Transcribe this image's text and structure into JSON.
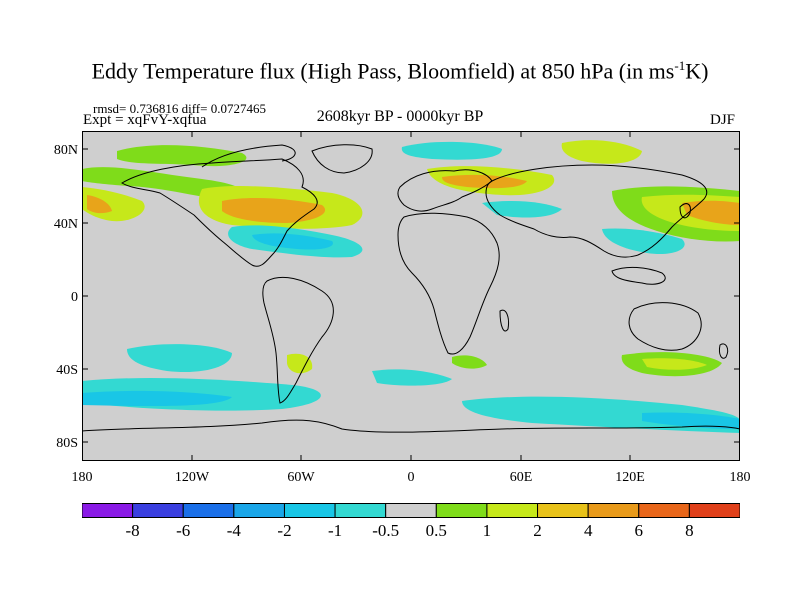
{
  "title": "Eddy Temperature flux (High Pass, Bloomfield) at 850 hPa (in ms",
  "title_sup": "-1",
  "title_end": "K)",
  "stats": "rmsd= 0.736816 diff= 0.0727465",
  "expt": "Expt = xqFvY-xqfua",
  "period": "2608kyr BP - 0000kyr BP",
  "season": "DJF",
  "lat_labels": [
    "80N",
    "40N",
    "0",
    "40S",
    "80S"
  ],
  "lon_labels": [
    "180",
    "120W",
    "60W",
    "0",
    "60E",
    "120E",
    "180"
  ],
  "legend": {
    "labels": [
      "-8",
      "-6",
      "-4",
      "-2",
      "-1",
      "-0.5",
      "0.5",
      "1",
      "2",
      "4",
      "6",
      "8"
    ],
    "colors": [
      "#8a1ae6",
      "#3a3fe0",
      "#1a6fe8",
      "#1aa6e8",
      "#19c6e6",
      "#33d9d2",
      "#cfcfcf",
      "#7fdc1a",
      "#c6e81a",
      "#e8c21a",
      "#e89a1a",
      "#e8661a",
      "#e0401a"
    ]
  },
  "field_colors": {
    "land_ocean_zero": "#cfcfcf",
    "cyan": "#33d9d2",
    "light_blue": "#19c6e6",
    "green": "#7fdc1a",
    "yellow_green": "#c6e81a",
    "orange": "#e8a41a"
  }
}
